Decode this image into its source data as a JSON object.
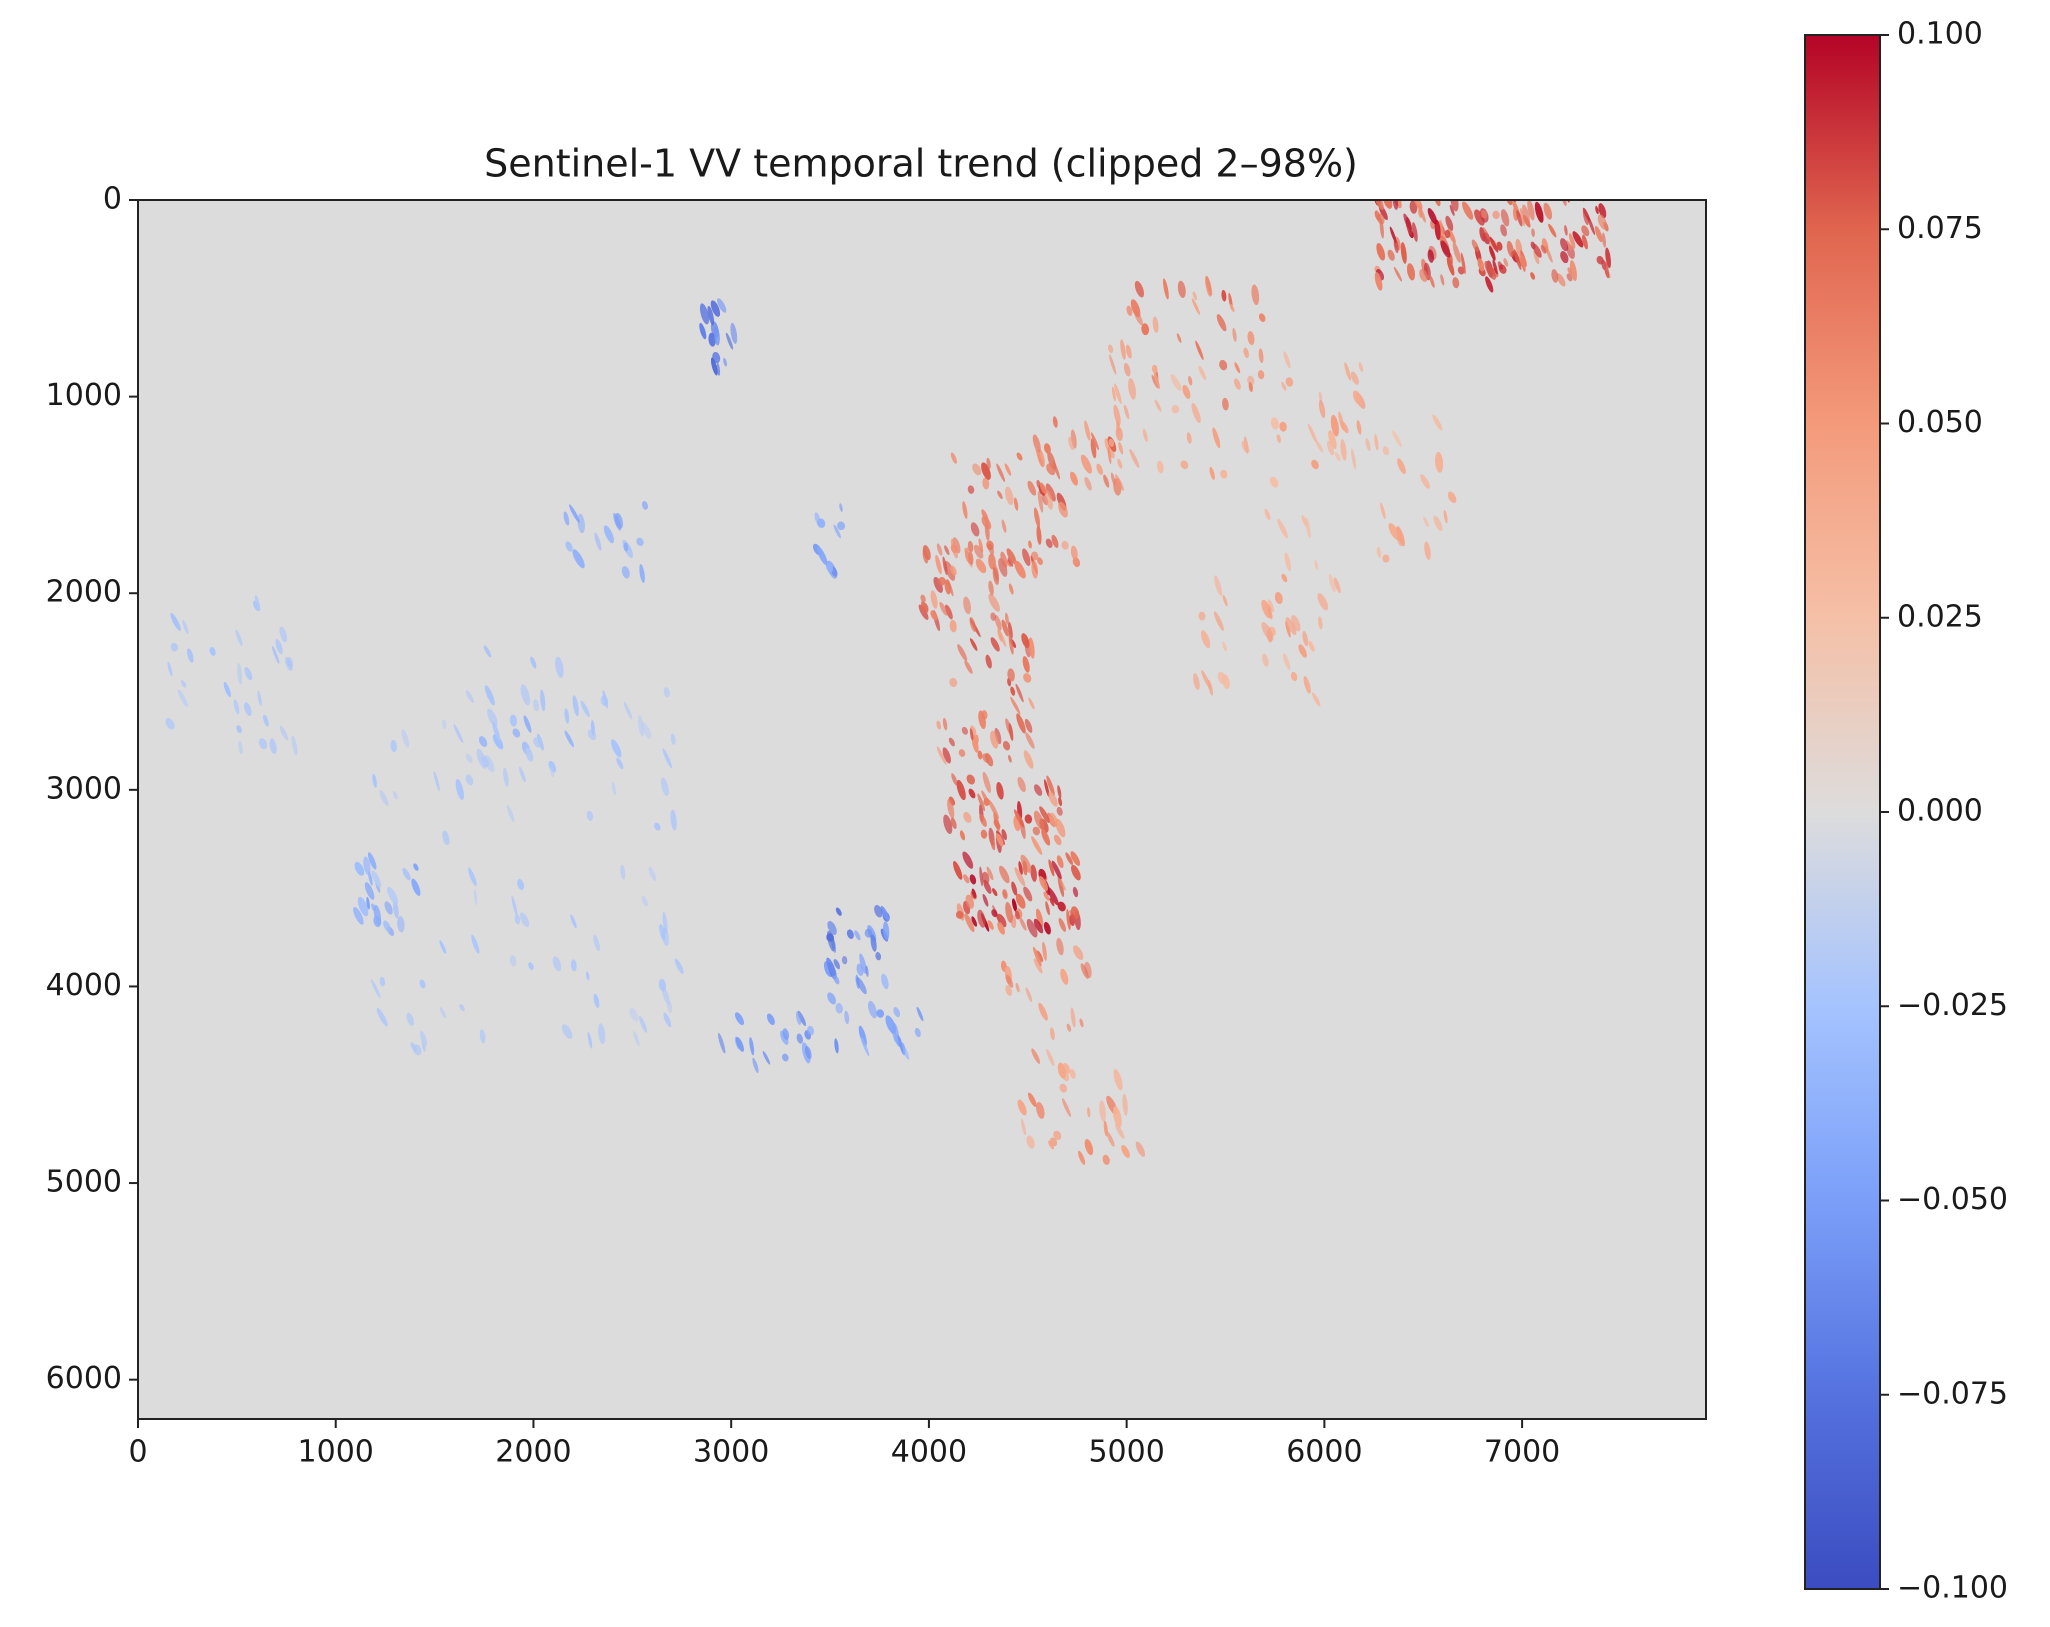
{
  "chart_data": {
    "type": "image",
    "title": "Sentinel-1 VV temporal trend (clipped 2–98%)",
    "colormap": "coolwarm",
    "background_value": 0,
    "xlim": [
      0,
      7930
    ],
    "ylim": [
      6200,
      0
    ],
    "xticks": [
      0,
      1000,
      2000,
      3000,
      4000,
      5000,
      6000,
      7000
    ],
    "yticks": [
      0,
      1000,
      2000,
      3000,
      4000,
      5000,
      6000
    ],
    "clim": [
      -0.1,
      0.1
    ],
    "cticks": [
      {
        "value": 0.1,
        "label": "0.100"
      },
      {
        "value": 0.075,
        "label": "0.075"
      },
      {
        "value": 0.05,
        "label": "0.050"
      },
      {
        "value": 0.025,
        "label": "0.025"
      },
      {
        "value": 0,
        "label": "0.000"
      },
      {
        "value": -0.025,
        "label": "−0.025"
      },
      {
        "value": -0.05,
        "label": "−0.050"
      },
      {
        "value": -0.075,
        "label": "−0.075"
      },
      {
        "value": -0.1,
        "label": "−0.100"
      }
    ]
  }
}
